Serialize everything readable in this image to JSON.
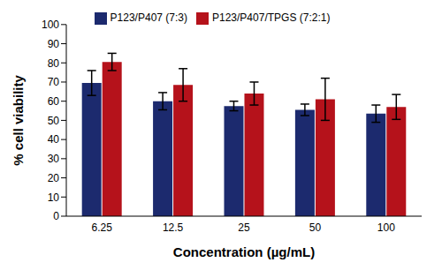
{
  "chart_data": {
    "type": "bar",
    "x_label": "Concentration (µg/mL)",
    "y_label": "% cell viability",
    "categories": [
      "6.25",
      "12.5",
      "25",
      "50",
      "100"
    ],
    "series": [
      {
        "name": "P123/P407 (7:3)",
        "color": "#1c2a6e",
        "values": [
          69.5,
          60,
          57.5,
          55.5,
          53.5
        ],
        "errors": [
          6.5,
          4.5,
          2.5,
          3,
          4.5
        ]
      },
      {
        "name": "P123/P407/TPGS (7:2:1)",
        "color": "#b5121b",
        "values": [
          80.5,
          68.5,
          64,
          61,
          57
        ],
        "errors": [
          4.5,
          8.5,
          6,
          11,
          6.5
        ]
      }
    ],
    "ylim": [
      0,
      100
    ],
    "yticks": [
      0,
      10,
      20,
      30,
      40,
      50,
      60,
      70,
      80,
      90,
      100
    ],
    "grid": false,
    "legend": "top"
  }
}
